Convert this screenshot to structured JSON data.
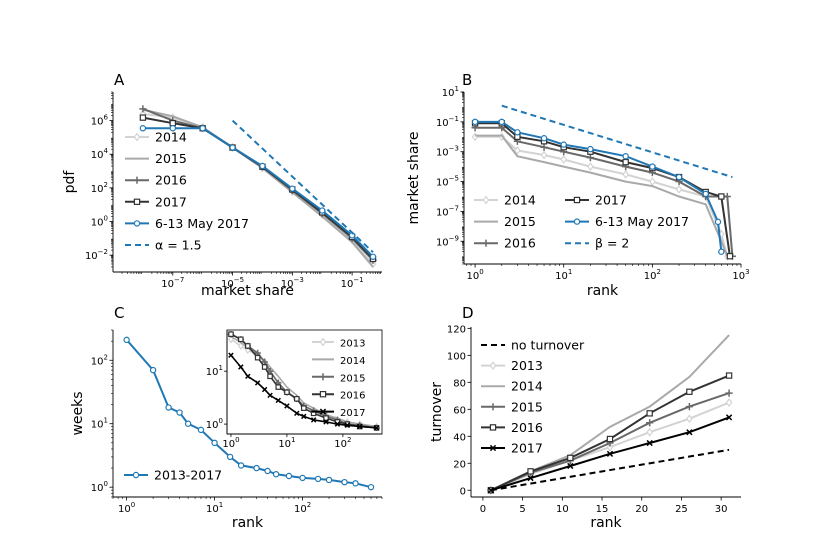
{
  "chart_data": [
    {
      "panel": "A",
      "type": "line",
      "xlabel": "market share",
      "ylabel": "pdf",
      "xscale": "log",
      "yscale": "log",
      "xlim": [
        1e-09,
        1.0
      ],
      "ylim": [
        0.001,
        50000000.0
      ],
      "xticks": [
        {
          "base": "10",
          "exp": "−7",
          "value": 1e-07
        },
        {
          "base": "10",
          "exp": "−5",
          "value": 1e-05
        },
        {
          "base": "10",
          "exp": "−3",
          "value": 0.001
        },
        {
          "base": "10",
          "exp": "−1",
          "value": 0.1
        }
      ],
      "yticks": [
        {
          "base": "10",
          "exp": "−2",
          "value": 0.01
        },
        {
          "base": "10",
          "exp": "0",
          "value": 1
        },
        {
          "base": "10",
          "exp": "2",
          "value": 100
        },
        {
          "base": "10",
          "exp": "4",
          "value": 10000
        },
        {
          "base": "10",
          "exp": "6",
          "value": 1000000
        }
      ],
      "legend_placement": "left",
      "series": [
        {
          "name": "2014",
          "color": "#d3d3d3",
          "marker": "diamond",
          "x": [
            1e-08,
            1e-07,
            1e-06,
            1e-05,
            0.0001,
            0.001,
            0.01,
            0.1,
            0.5
          ],
          "y": [
            2500000,
            1500000,
            400000,
            25000,
            1500,
            60,
            2.5,
            0.08,
            0.003
          ]
        },
        {
          "name": "2015",
          "color": "#a9a9a9",
          "marker": "none",
          "x": [
            1e-08,
            1e-07,
            1e-06,
            1e-05,
            0.0001,
            0.001,
            0.01,
            0.1,
            0.5
          ],
          "y": [
            4500000,
            1800000,
            400000,
            25000,
            1500,
            55,
            2.0,
            0.06,
            0.002
          ]
        },
        {
          "name": "2016",
          "color": "#696969",
          "marker": "plus",
          "x": [
            1e-08,
            1e-07,
            1e-06,
            1e-05,
            0.0001,
            0.001,
            0.01,
            0.1,
            0.5
          ],
          "y": [
            5000000,
            1000000,
            350000,
            25000,
            1800,
            70,
            3.0,
            0.1,
            0.005
          ]
        },
        {
          "name": "2017",
          "color": "#333333",
          "marker": "square",
          "x": [
            1e-08,
            1e-07,
            1e-06,
            1e-05,
            0.0001,
            0.001,
            0.01,
            0.1,
            0.5
          ],
          "y": [
            1500000,
            700000,
            350000,
            25000,
            1800,
            80,
            3.5,
            0.12,
            0.006
          ]
        },
        {
          "name": "6-13 May 2017",
          "color": "#1f77b4",
          "marker": "circle",
          "x": [
            1e-08,
            1e-07,
            1e-06,
            1e-05,
            0.0001,
            0.001,
            0.01,
            0.1,
            0.5
          ],
          "y": [
            350000,
            350000,
            350000,
            25000,
            2000,
            90,
            4.5,
            0.15,
            0.008
          ]
        },
        {
          "name": "α = 1.5",
          "color": "#1f77b4",
          "dash": true,
          "x": [
            1e-05,
            0.5
          ],
          "y": [
            1000000,
            0.015
          ]
        }
      ]
    },
    {
      "panel": "B",
      "type": "line",
      "xlabel": "rank",
      "ylabel": "market share",
      "xscale": "log",
      "yscale": "log",
      "xlim": [
        0.75,
        1000
      ],
      "ylim": [
        3e-11,
        10
      ],
      "xticks": [
        {
          "base": "10",
          "exp": "0",
          "value": 1
        },
        {
          "base": "10",
          "exp": "1",
          "value": 10
        },
        {
          "base": "10",
          "exp": "2",
          "value": 100
        },
        {
          "base": "10",
          "exp": "3",
          "value": 1000
        }
      ],
      "yticks": [
        {
          "base": "10",
          "exp": "−9",
          "value": 1e-09
        },
        {
          "base": "10",
          "exp": "−7",
          "value": 1e-07
        },
        {
          "base": "10",
          "exp": "−5",
          "value": 1e-05
        },
        {
          "base": "10",
          "exp": "−3",
          "value": 0.001
        },
        {
          "base": "10",
          "exp": "−1",
          "value": 0.1
        },
        {
          "base": "10",
          "exp": "1",
          "value": 10
        }
      ],
      "legend_placement": "lower-left",
      "series": [
        {
          "name": "2014",
          "color": "#d3d3d3",
          "marker": "diamond",
          "x": [
            1,
            2,
            3,
            6,
            10,
            20,
            50,
            100,
            200,
            400,
            600,
            700
          ],
          "y": [
            0.01,
            0.01,
            0.0012,
            0.0006,
            0.0003,
            0.0001,
            3e-05,
            1e-05,
            3e-06,
            1e-06,
            3e-09,
            1e-10
          ]
        },
        {
          "name": "2015",
          "color": "#a9a9a9",
          "marker": "none",
          "x": [
            1,
            2,
            3,
            6,
            10,
            20,
            50,
            100,
            200,
            400,
            600,
            700
          ],
          "y": [
            0.012,
            0.012,
            0.0005,
            0.0002,
            0.0001,
            4e-05,
            1e-05,
            5e-06,
            1e-06,
            3e-07,
            1e-09,
            1e-10
          ]
        },
        {
          "name": "2016",
          "color": "#696969",
          "marker": "plus",
          "x": [
            1,
            2,
            3,
            6,
            10,
            20,
            50,
            100,
            200,
            400,
            700,
            800
          ],
          "y": [
            0.04,
            0.04,
            0.005,
            0.002,
            0.001,
            0.0004,
            0.0001,
            4e-05,
            1e-05,
            1e-06,
            1e-06,
            1e-10
          ]
        },
        {
          "name": "2017",
          "color": "#333333",
          "marker": "square",
          "x": [
            1,
            2,
            3,
            6,
            10,
            20,
            50,
            100,
            200,
            400,
            600,
            750
          ],
          "y": [
            0.08,
            0.08,
            0.01,
            0.005,
            0.002,
            0.001,
            0.0002,
            8e-05,
            2e-05,
            2e-06,
            1e-06,
            1e-10
          ]
        },
        {
          "name": "6-13 May 2017",
          "color": "#1f77b4",
          "marker": "circle",
          "x": [
            1,
            2,
            3,
            6,
            10,
            20,
            50,
            100,
            200,
            400,
            550,
            600
          ],
          "y": [
            0.1,
            0.1,
            0.02,
            0.008,
            0.003,
            0.0015,
            0.0005,
            0.0001,
            2e-05,
            1.5e-06,
            2e-08,
            2e-10
          ]
        },
        {
          "name": "β = 2",
          "color": "#1f77b4",
          "dash": true,
          "x": [
            2,
            800
          ],
          "y": [
            1.2,
            2e-05
          ]
        }
      ]
    },
    {
      "panel": "C",
      "type": "line",
      "xlabel": "rank",
      "ylabel": "weeks",
      "xscale": "log",
      "yscale": "log",
      "xlim": [
        0.7,
        800
      ],
      "ylim": [
        0.7,
        300
      ],
      "xticks": [
        {
          "base": "10",
          "exp": "0",
          "value": 1
        },
        {
          "base": "10",
          "exp": "1",
          "value": 10
        },
        {
          "base": "10",
          "exp": "2",
          "value": 100
        }
      ],
      "yticks": [
        {
          "base": "10",
          "exp": "0",
          "value": 1
        },
        {
          "base": "10",
          "exp": "1",
          "value": 10
        },
        {
          "base": "10",
          "exp": "2",
          "value": 100
        }
      ],
      "legend_placement": "lower-left",
      "series": [
        {
          "name": "2013-2017",
          "color": "#1f77b4",
          "marker": "circle",
          "x": [
            1,
            2,
            3,
            4,
            5,
            7,
            10,
            15,
            20,
            30,
            40,
            50,
            70,
            100,
            150,
            200,
            300,
            400,
            600
          ],
          "y": [
            210,
            70,
            18,
            15,
            10,
            8,
            5,
            3,
            2.2,
            2,
            1.8,
            1.6,
            1.5,
            1.4,
            1.35,
            1.3,
            1.2,
            1.15,
            1.0
          ]
        }
      ],
      "inset": {
        "xscale": "log",
        "yscale": "log",
        "xlim": [
          0.85,
          500
        ],
        "ylim": [
          0.65,
          60
        ],
        "xticks": [
          {
            "base": "10",
            "exp": "0",
            "value": 1
          },
          {
            "base": "10",
            "exp": "1",
            "value": 10
          },
          {
            "base": "10",
            "exp": "2",
            "value": 100
          }
        ],
        "yticks": [
          {
            "base": "10",
            "exp": "0",
            "value": 1
          },
          {
            "base": "10",
            "exp": "1",
            "value": 10
          }
        ],
        "legend_placement": "top-right",
        "series": [
          {
            "name": "2013",
            "color": "#d3d3d3",
            "marker": "diamond",
            "x": [
              1,
              1.5,
              2,
              3,
              4,
              5,
              7,
              10,
              15,
              20,
              30,
              50,
              80,
              120,
              200,
              400
            ],
            "y": [
              40,
              30,
              25,
              20,
              15,
              10,
              6,
              4,
              3,
              2.2,
              1.8,
              1.5,
              1.2,
              1.1,
              1.0,
              0.9
            ]
          },
          {
            "name": "2014",
            "color": "#a9a9a9",
            "marker": "none",
            "x": [
              1,
              1.5,
              2,
              3,
              4,
              5,
              7,
              10,
              15,
              20,
              30,
              50,
              80,
              120,
              200,
              400
            ],
            "y": [
              45,
              35,
              28,
              20,
              16,
              12,
              8,
              5,
              3.5,
              2.5,
              2.0,
              1.5,
              1.3,
              1.1,
              1.0,
              0.9
            ]
          },
          {
            "name": "2015",
            "color": "#696969",
            "marker": "plus",
            "x": [
              1,
              1.5,
              2,
              3,
              4,
              5,
              7,
              10,
              15,
              20,
              30,
              50,
              80,
              120,
              200,
              400
            ],
            "y": [
              50,
              40,
              30,
              22,
              15,
              10,
              6,
              4,
              3,
              2.2,
              1.8,
              1.4,
              1.2,
              1.0,
              0.95,
              0.85
            ]
          },
          {
            "name": "2016",
            "color": "#333333",
            "marker": "square",
            "x": [
              1,
              1.5,
              2,
              3,
              4,
              5,
              7,
              10,
              15,
              20,
              30,
              50,
              80,
              120,
              200,
              400
            ],
            "y": [
              50,
              40,
              30,
              18,
              12,
              8,
              5,
              4,
              3,
              2.0,
              1.6,
              1.3,
              1.1,
              1.0,
              0.9,
              0.85
            ]
          },
          {
            "name": "2017",
            "color": "#000000",
            "marker": "x",
            "x": [
              1,
              1.5,
              2,
              3,
              4,
              5,
              7,
              10,
              15,
              20,
              30,
              50,
              80,
              120,
              200,
              400
            ],
            "y": [
              20,
              12,
              8,
              6,
              4.5,
              3.5,
              2.8,
              2.2,
              1.6,
              1.4,
              1.2,
              1.1,
              1.0,
              0.95,
              0.9,
              0.85
            ]
          }
        ]
      }
    },
    {
      "panel": "D",
      "type": "line",
      "xlabel": "rank",
      "ylabel": "turnover",
      "xscale": "linear",
      "yscale": "linear",
      "xlim": [
        -1.5,
        32.5
      ],
      "ylim": [
        -5,
        121
      ],
      "xticks": [
        {
          "label": "0",
          "value": 0
        },
        {
          "label": "5",
          "value": 5
        },
        {
          "label": "10",
          "value": 10
        },
        {
          "label": "15",
          "value": 15
        },
        {
          "label": "20",
          "value": 20
        },
        {
          "label": "25",
          "value": 25
        },
        {
          "label": "30",
          "value": 30
        }
      ],
      "yticks": [
        {
          "label": "0",
          "value": 0
        },
        {
          "label": "20",
          "value": 20
        },
        {
          "label": "40",
          "value": 40
        },
        {
          "label": "60",
          "value": 60
        },
        {
          "label": "80",
          "value": 80
        },
        {
          "label": "100",
          "value": 100
        },
        {
          "label": "120",
          "value": 120
        }
      ],
      "legend_placement": "top-left",
      "series": [
        {
          "name": "no turnover",
          "color": "#000000",
          "dash": true,
          "x": [
            1,
            31
          ],
          "y": [
            0,
            30
          ]
        },
        {
          "name": "2013",
          "color": "#d3d3d3",
          "marker": "diamond",
          "x": [
            1,
            6,
            11,
            16,
            21,
            26,
            31
          ],
          "y": [
            0,
            12,
            22,
            32,
            43,
            53,
            65
          ]
        },
        {
          "name": "2014",
          "color": "#a9a9a9",
          "marker": "none",
          "x": [
            1,
            6,
            11,
            16,
            21,
            26,
            31
          ],
          "y": [
            0,
            14,
            26,
            47,
            62,
            84,
            115
          ]
        },
        {
          "name": "2015",
          "color": "#696969",
          "marker": "plus",
          "x": [
            1,
            6,
            11,
            16,
            21,
            26,
            31
          ],
          "y": [
            0,
            13,
            22,
            35,
            50,
            62,
            72
          ]
        },
        {
          "name": "2016",
          "color": "#333333",
          "marker": "square",
          "x": [
            1,
            6,
            11,
            16,
            21,
            26,
            31
          ],
          "y": [
            0,
            14,
            24,
            38,
            57,
            73,
            85
          ]
        },
        {
          "name": "2017",
          "color": "#000000",
          "marker": "x",
          "x": [
            1,
            6,
            11,
            16,
            21,
            26,
            31
          ],
          "y": [
            0,
            9,
            18,
            27,
            35,
            43,
            54
          ]
        }
      ]
    }
  ]
}
